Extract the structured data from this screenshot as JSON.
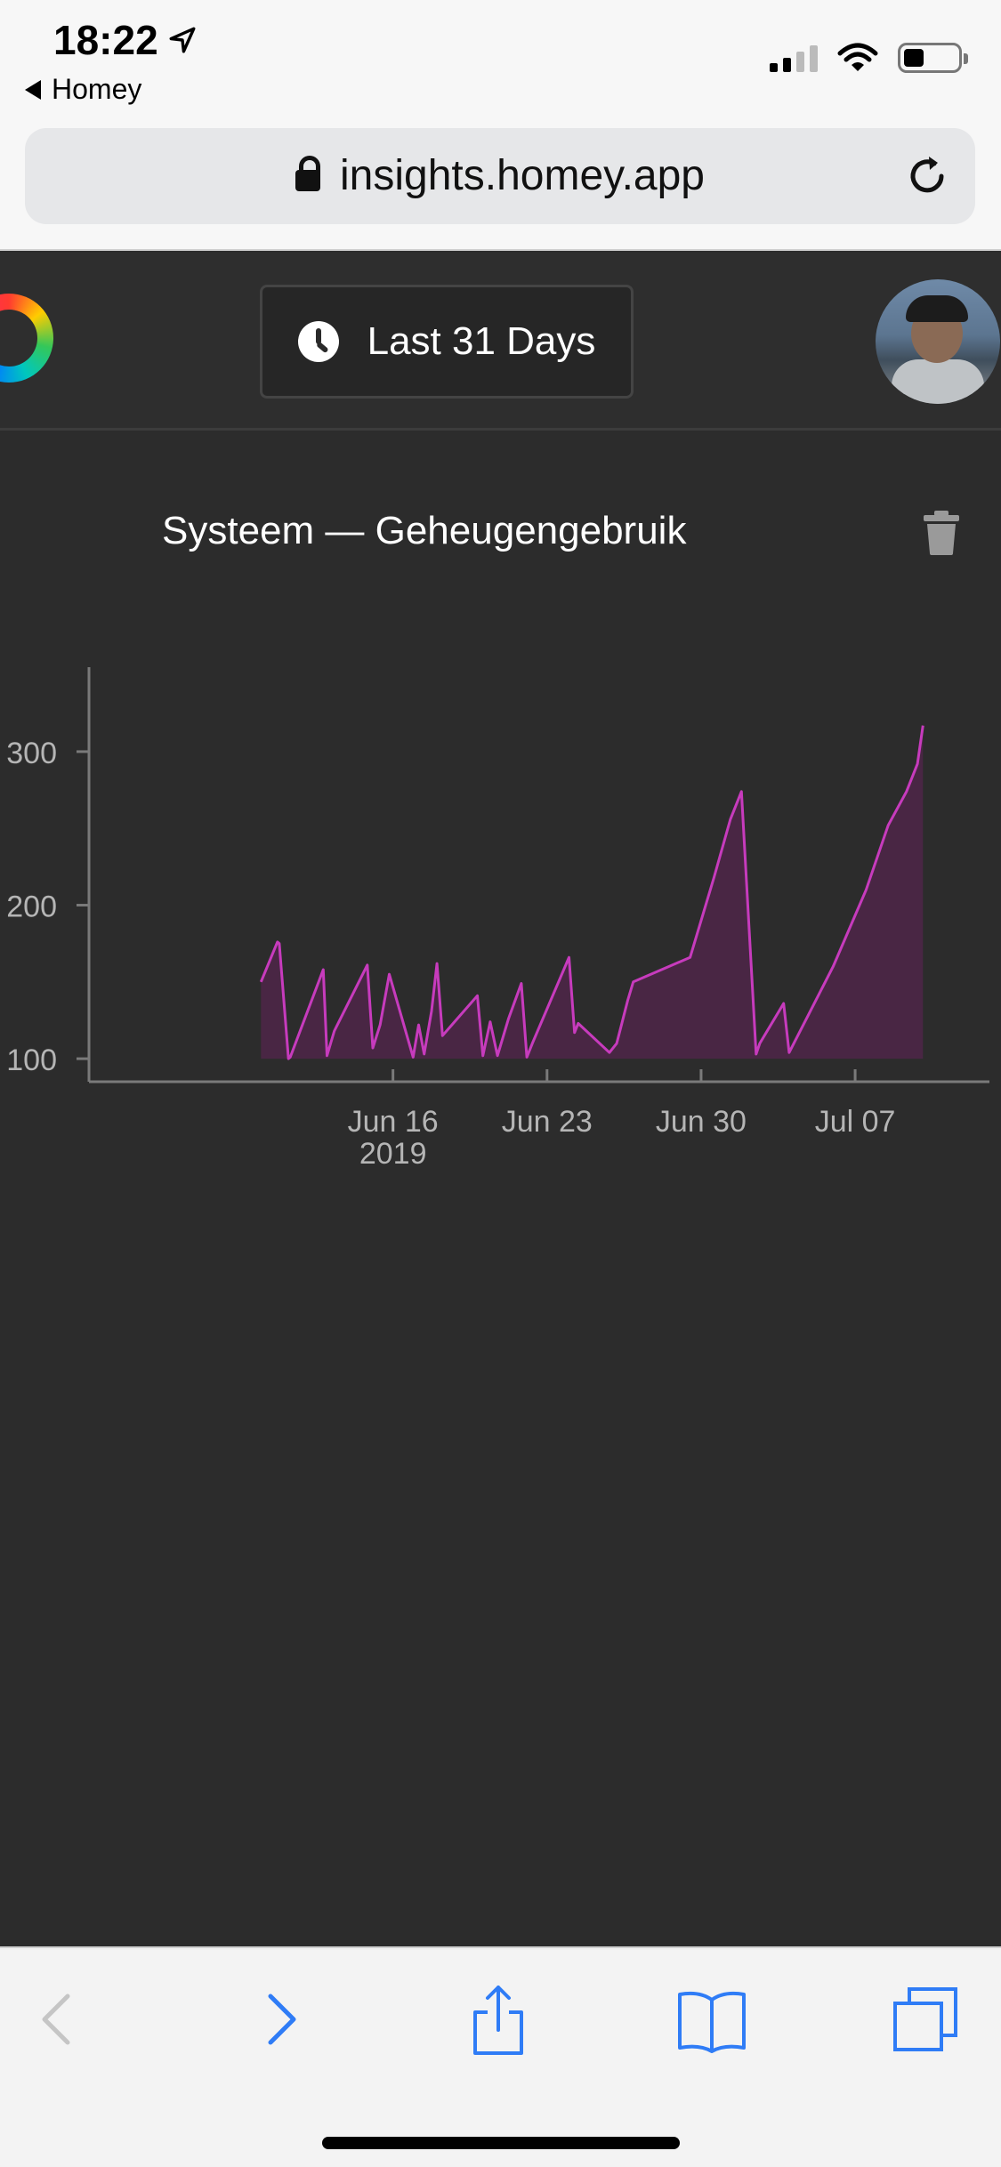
{
  "status_bar": {
    "time": "18:22",
    "back_app": "Homey"
  },
  "browser": {
    "url": "insights.homey.app"
  },
  "header": {
    "range_label": "Last 31 Days"
  },
  "card": {
    "title": "Systeem — Geheugengebruik"
  },
  "colors": {
    "line": "#c73bbd",
    "fill": "#4b2646",
    "background": "#2c2c2c",
    "ios_blue": "#2f7cf6"
  },
  "icons": [
    "location-arrow-icon",
    "back-triangle-icon",
    "signal-icon",
    "wifi-icon",
    "battery-icon",
    "lock-icon",
    "reload-icon",
    "homey-logo-icon",
    "clock-icon",
    "trash-icon",
    "back-chevron-icon",
    "forward-chevron-icon",
    "share-icon",
    "bookmarks-icon",
    "tabs-icon"
  ],
  "chart_data": {
    "type": "area",
    "title": "",
    "xlabel": "",
    "ylabel": "",
    "xlim": [
      "2019-06-11",
      "2019-07-11"
    ],
    "ylim": [
      85,
      355
    ],
    "y_ticks": [
      100,
      200,
      300
    ],
    "y_tick_labels": [
      "100",
      "200",
      "300"
    ],
    "x_ticks": [
      "2019-06-16",
      "2019-06-23",
      "2019-06-30",
      "2019-07-07"
    ],
    "x_tick_labels": [
      {
        "line1": "Jun 16",
        "line2": "2019"
      },
      {
        "line1": "Jun 23",
        "line2": ""
      },
      {
        "line1": "Jun 30",
        "line2": ""
      },
      {
        "line1": "Jul 07",
        "line2": ""
      }
    ],
    "grid": false,
    "series": [
      {
        "x": [
          "2019-06-10 00:00",
          "2019-06-10 18:00",
          "2019-06-10 20:00",
          "2019-06-11 06:00",
          "2019-06-11 08:00",
          "2019-06-12 20:00",
          "2019-06-13 00:00",
          "2019-06-13 08:00",
          "2019-06-14 20:00",
          "2019-06-15 02:00",
          "2019-06-15 10:00",
          "2019-06-15 20:00",
          "2019-06-16 22:00",
          "2019-06-17 04:00",
          "2019-06-17 10:00",
          "2019-06-17 18:00",
          "2019-06-18 00:00",
          "2019-06-18 06:00",
          "2019-06-19 20:00",
          "2019-06-20 02:00",
          "2019-06-20 10:00",
          "2019-06-20 18:00",
          "2019-06-21 00:00",
          "2019-06-21 06:00",
          "2019-06-21 20:00",
          "2019-06-22 02:00",
          "2019-06-22 08:00",
          "2019-06-24 00:00",
          "2019-06-24 06:00",
          "2019-06-24 10:00",
          "2019-06-25 20:00",
          "2019-06-26 04:00",
          "2019-06-26 10:00",
          "2019-06-26 16:00",
          "2019-06-26 22:00",
          "2019-06-29 12:00",
          "2019-06-30 14:00",
          "2019-07-01 08:00",
          "2019-07-01 20:00",
          "2019-07-02 12:00",
          "2019-07-02 16:00",
          "2019-07-03 18:00",
          "2019-07-04 00:00",
          "2019-07-06 00:00",
          "2019-07-07 12:00",
          "2019-07-08 12:00",
          "2019-07-09 08:00",
          "2019-07-09 20:00",
          "2019-07-10 02:00"
        ],
        "y": [
          150,
          176,
          175,
          100,
          101,
          158,
          102,
          118,
          161,
          107,
          122,
          155,
          101,
          122,
          103,
          131,
          162,
          115,
          141,
          102,
          124,
          102,
          114,
          126,
          149,
          101,
          110,
          166,
          117,
          123,
          104,
          110,
          124,
          138,
          150,
          166,
          218,
          256,
          274,
          103,
          110,
          136,
          104,
          160,
          210,
          252,
          274,
          292,
          317
        ]
      }
    ]
  },
  "toolbar": {
    "back_enabled": false,
    "forward_enabled": true
  }
}
